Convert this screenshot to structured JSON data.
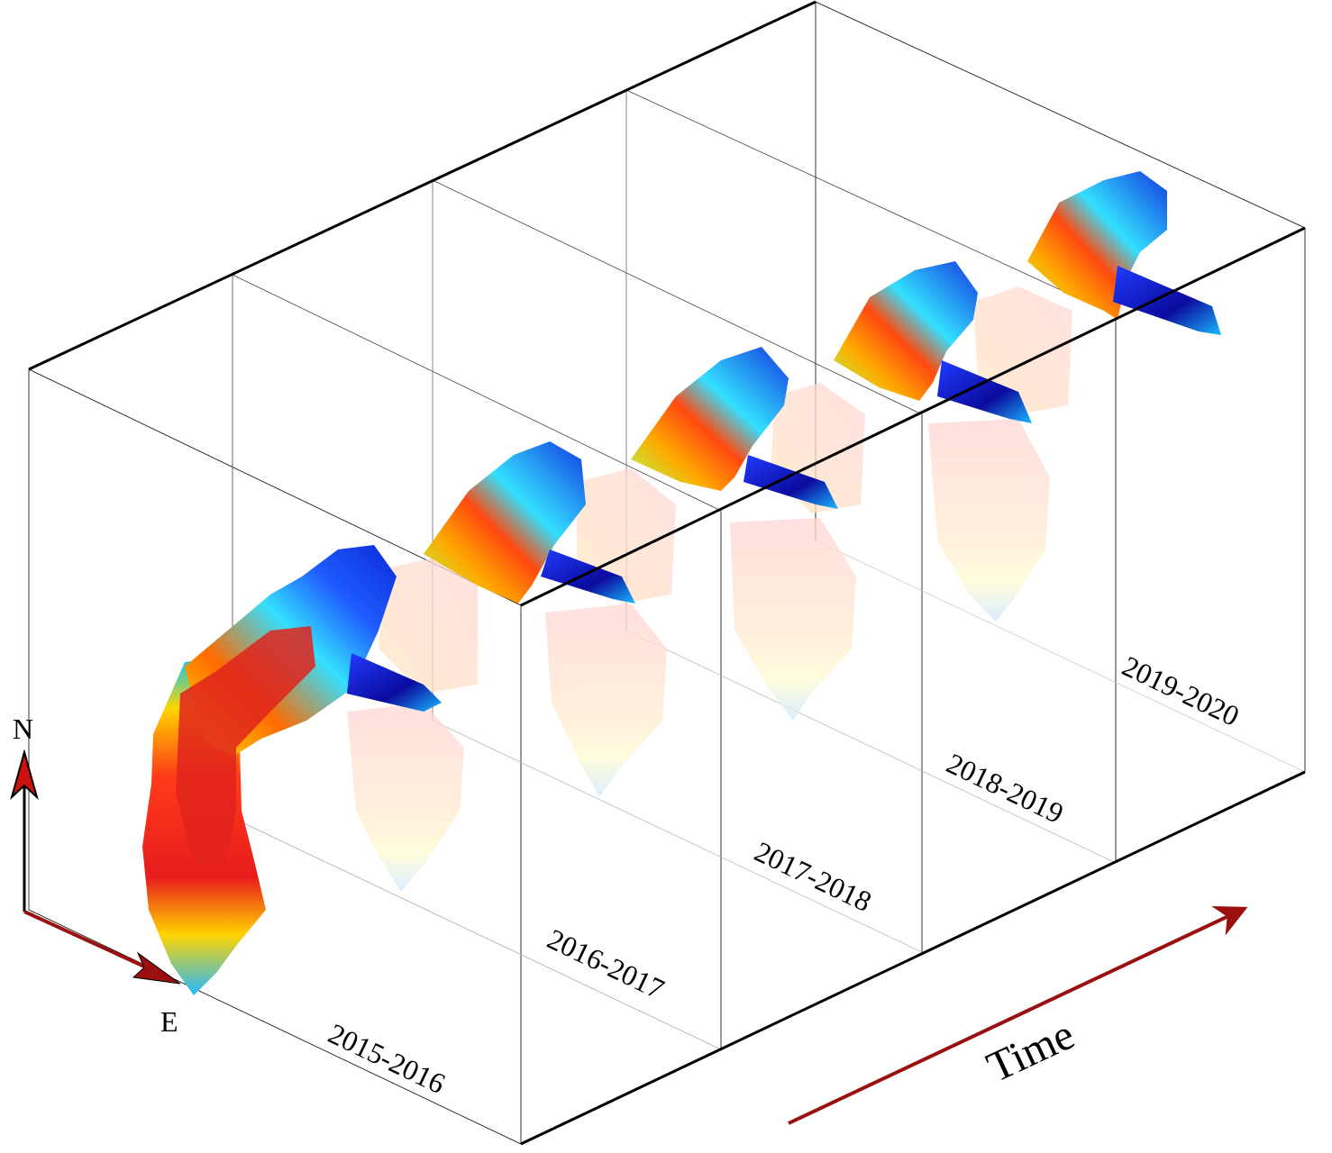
{
  "periods": [
    {
      "label": "2015-2016"
    },
    {
      "label": "2016-2017"
    },
    {
      "label": "2017-2018"
    },
    {
      "label": "2018-2019"
    },
    {
      "label": "2019-2020"
    }
  ],
  "compass": {
    "north": "N",
    "east": "E"
  },
  "time_label": "Time",
  "colors": {
    "frame": "#000000",
    "arrow": "#9b0f0f",
    "colormap": [
      "#00008f",
      "#0033ff",
      "#00aaff",
      "#33ffff",
      "#aaff55",
      "#ffff00",
      "#ffaa00",
      "#ff3300",
      "#cc0000"
    ]
  }
}
